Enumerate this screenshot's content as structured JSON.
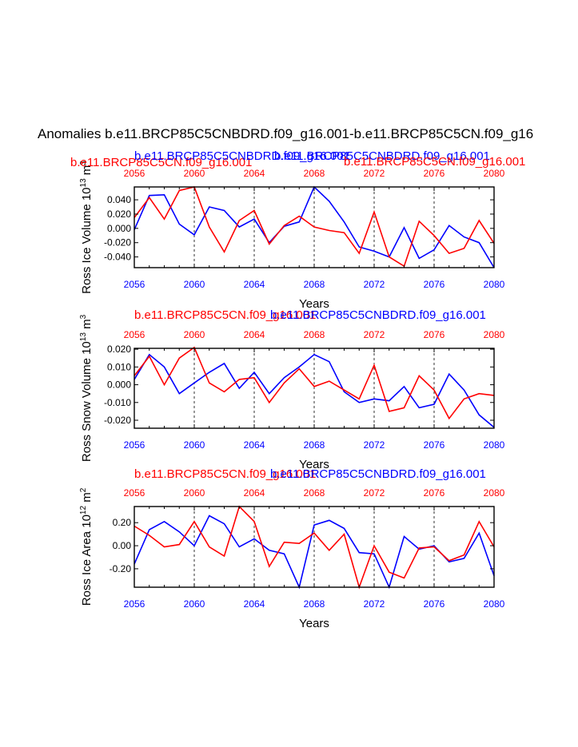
{
  "main_title": "Anomalies b.e11.BRCP85C5CNBDRD.f09_g16.001-b.e11.BRCP85C5CN.f09_g16",
  "colors": {
    "red": "#ff0000",
    "blue": "#0000ff",
    "black": "#000000"
  },
  "chart_data": [
    {
      "type": "line",
      "ylabel": "Ross Ice Volume 10",
      "ylabel_sup1": "13",
      "ylabel_mid": " m",
      "ylabel_sup2": "3",
      "xlabel": "Years",
      "xlim": [
        2056,
        2080
      ],
      "ylim": [
        -0.055,
        0.058
      ],
      "yticks": [
        -0.04,
        -0.02,
        0.0,
        0.02,
        0.04
      ],
      "yticklabels": [
        "-0.040",
        "-0.020",
        "0.000",
        "0.020",
        "0.040"
      ],
      "xticks": [
        2056,
        2060,
        2064,
        2068,
        2072,
        2076,
        2080
      ],
      "xticklabels": [
        "2056",
        "2060",
        "2064",
        "2068",
        "2072",
        "2076",
        "2080"
      ],
      "legend_top": [
        {
          "text": "b.e11.BRCP85C5CN.f09_g16.001",
          "color": "red"
        },
        {
          "text": "b.e11.BRCP85C5CNBDRD.f09_g16.001",
          "color": "blue"
        },
        {
          "text": "b.e11.BRCP85C5CNBDRD.f09_g16.001",
          "color": "blue"
        },
        {
          "text": "b.e11.BRCP85C5CN.f09_g16.001",
          "color": "red"
        }
      ],
      "x": [
        2056,
        2057,
        2058,
        2059,
        2060,
        2061,
        2062,
        2063,
        2064,
        2065,
        2066,
        2067,
        2068,
        2069,
        2070,
        2071,
        2072,
        2073,
        2074,
        2075,
        2076,
        2077,
        2078,
        2079,
        2080
      ],
      "series": [
        {
          "name": "b.e11.BRCP85C5CNBDRD.f09_g16.001",
          "color": "blue",
          "values": [
            -0.002,
            0.046,
            0.047,
            0.006,
            -0.009,
            0.03,
            0.025,
            0.002,
            0.013,
            -0.02,
            0.003,
            0.009,
            0.058,
            0.038,
            0.009,
            -0.026,
            -0.032,
            -0.04,
            0.001,
            -0.042,
            -0.03,
            0.004,
            -0.012,
            -0.02,
            -0.055
          ]
        },
        {
          "name": "b.e11.BRCP85C5CN.f09_g16.001",
          "color": "red",
          "values": [
            0.015,
            0.043,
            0.013,
            0.053,
            0.058,
            0.002,
            -0.033,
            0.011,
            0.025,
            -0.022,
            0.004,
            0.017,
            0.002,
            -0.003,
            -0.006,
            -0.035,
            0.023,
            -0.04,
            -0.053,
            0.01,
            -0.01,
            -0.035,
            -0.028,
            0.011,
            -0.021
          ]
        }
      ]
    },
    {
      "type": "line",
      "ylabel": "Ross Snow Volume 10",
      "ylabel_sup1": "13",
      "ylabel_mid": " m",
      "ylabel_sup2": "3",
      "xlabel": "Years",
      "xlim": [
        2056,
        2080
      ],
      "ylim": [
        -0.0245,
        0.0205
      ],
      "yticks": [
        -0.02,
        -0.01,
        0.0,
        0.01,
        0.02
      ],
      "yticklabels": [
        "-0.020",
        "-0.010",
        "0.000",
        "0.010",
        "0.020"
      ],
      "xticks": [
        2056,
        2060,
        2064,
        2068,
        2072,
        2076,
        2080
      ],
      "xticklabels": [
        "2056",
        "2060",
        "2064",
        "2068",
        "2072",
        "2076",
        "2080"
      ],
      "legend_top": [
        {
          "text": "b.e11.BRCP85C5CN.f09_g16.001",
          "color": "red"
        },
        {
          "text": "b.e11.BRCP85C5CNBDRD.f09_g16.001",
          "color": "blue"
        }
      ],
      "x": [
        2056,
        2057,
        2058,
        2059,
        2060,
        2061,
        2062,
        2063,
        2064,
        2065,
        2066,
        2067,
        2068,
        2069,
        2070,
        2071,
        2072,
        2073,
        2074,
        2075,
        2076,
        2077,
        2078,
        2079,
        2080
      ],
      "series": [
        {
          "name": "b.e11.BRCP85C5CNBDRD.f09_g16.001",
          "color": "blue",
          "values": [
            0.003,
            0.017,
            0.01,
            -0.005,
            0.001,
            0.007,
            0.012,
            -0.002,
            0.007,
            -0.005,
            0.004,
            0.01,
            0.017,
            0.013,
            -0.004,
            -0.01,
            -0.008,
            -0.009,
            -0.001,
            -0.013,
            -0.011,
            0.006,
            -0.003,
            -0.017,
            -0.024
          ]
        },
        {
          "name": "b.e11.BRCP85C5CN.f09_g16.001",
          "color": "red",
          "values": [
            0.005,
            0.016,
            0.0,
            0.015,
            0.021,
            0.001,
            -0.004,
            0.003,
            0.004,
            -0.01,
            0.001,
            0.009,
            -0.001,
            0.002,
            -0.003,
            -0.008,
            0.011,
            -0.015,
            -0.013,
            0.005,
            -0.003,
            -0.019,
            -0.008,
            -0.005,
            -0.006
          ]
        }
      ]
    },
    {
      "type": "line",
      "ylabel": "Ross Ice Area 10",
      "ylabel_sup1": "12",
      "ylabel_mid": " m",
      "ylabel_sup2": "2",
      "xlabel": "Years",
      "xlim": [
        2056,
        2080
      ],
      "ylim": [
        -0.36,
        0.34
      ],
      "yticks": [
        -0.2,
        0.0,
        0.2
      ],
      "yticklabels": [
        "-0.20",
        "0.00",
        "0.20"
      ],
      "xticks": [
        2056,
        2060,
        2064,
        2068,
        2072,
        2076,
        2080
      ],
      "xticklabels": [
        "2056",
        "2060",
        "2064",
        "2068",
        "2072",
        "2076",
        "2080"
      ],
      "legend_top": [
        {
          "text": "b.e11.BRCP85C5CN.f09_g16.001",
          "color": "red"
        },
        {
          "text": "b.e11.BRCP85C5CNBDRD.f09_g16.001",
          "color": "blue"
        }
      ],
      "x": [
        2056,
        2057,
        2058,
        2059,
        2060,
        2061,
        2062,
        2063,
        2064,
        2065,
        2066,
        2067,
        2068,
        2069,
        2070,
        2071,
        2072,
        2073,
        2074,
        2075,
        2076,
        2077,
        2078,
        2079,
        2080
      ],
      "series": [
        {
          "name": "b.e11.BRCP85C5CNBDRD.f09_g16.001",
          "color": "blue",
          "values": [
            -0.16,
            0.14,
            0.21,
            0.12,
            0.0,
            0.26,
            0.19,
            -0.01,
            0.06,
            -0.04,
            -0.07,
            -0.36,
            0.18,
            0.22,
            0.15,
            -0.06,
            -0.07,
            -0.36,
            0.08,
            -0.03,
            0.0,
            -0.14,
            -0.11,
            0.11,
            -0.26
          ]
        },
        {
          "name": "b.e11.BRCP85C5CN.f09_g16.001",
          "color": "red",
          "values": [
            0.17,
            0.09,
            -0.01,
            0.01,
            0.21,
            -0.01,
            -0.09,
            0.34,
            0.21,
            -0.18,
            0.03,
            0.02,
            0.11,
            -0.04,
            0.1,
            -0.36,
            0.0,
            -0.23,
            -0.28,
            -0.02,
            -0.01,
            -0.13,
            -0.08,
            0.21,
            -0.01
          ]
        }
      ]
    }
  ]
}
